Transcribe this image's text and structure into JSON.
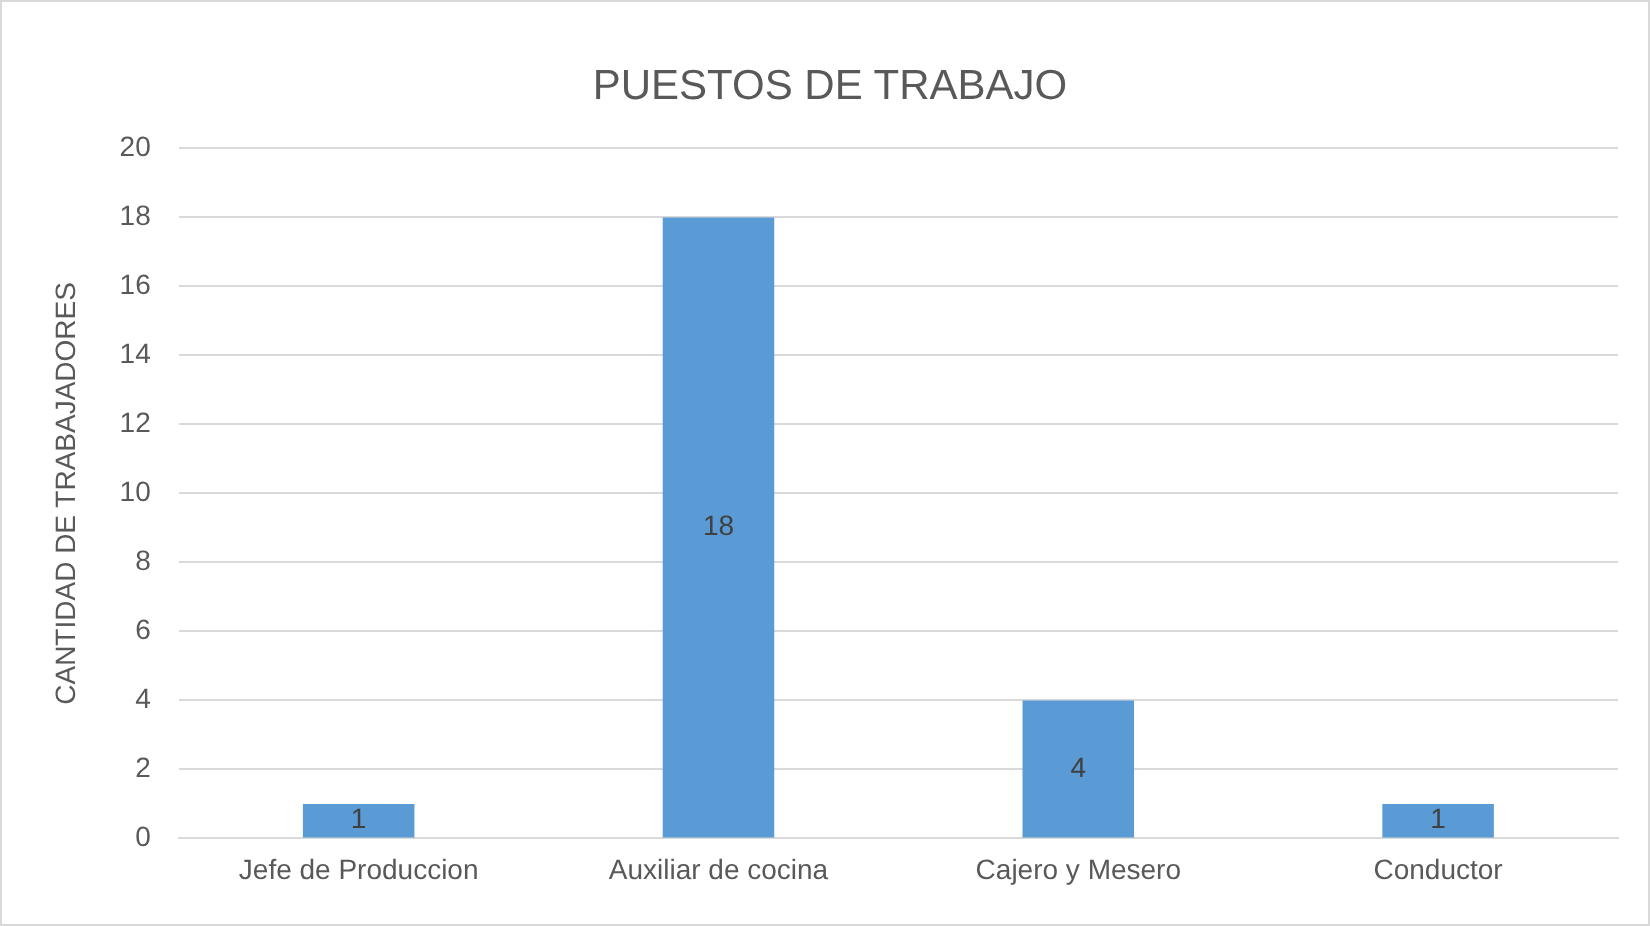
{
  "chart_data": {
    "type": "bar",
    "title": "PUESTOS DE TRABAJO",
    "ylabel": "CANTIDAD DE TRABAJADORES",
    "categories": [
      "Jefe de Produccion",
      "Auxiliar de cocina",
      "Cajero y Mesero",
      "Conductor"
    ],
    "values": [
      1,
      18,
      4,
      1
    ],
    "color": "#5b9bd5",
    "ylim": [
      0,
      20
    ],
    "yticks": [
      0,
      2,
      4,
      6,
      8,
      10,
      12,
      14,
      16,
      18,
      20
    ],
    "grid": "y",
    "data_labels": true
  }
}
